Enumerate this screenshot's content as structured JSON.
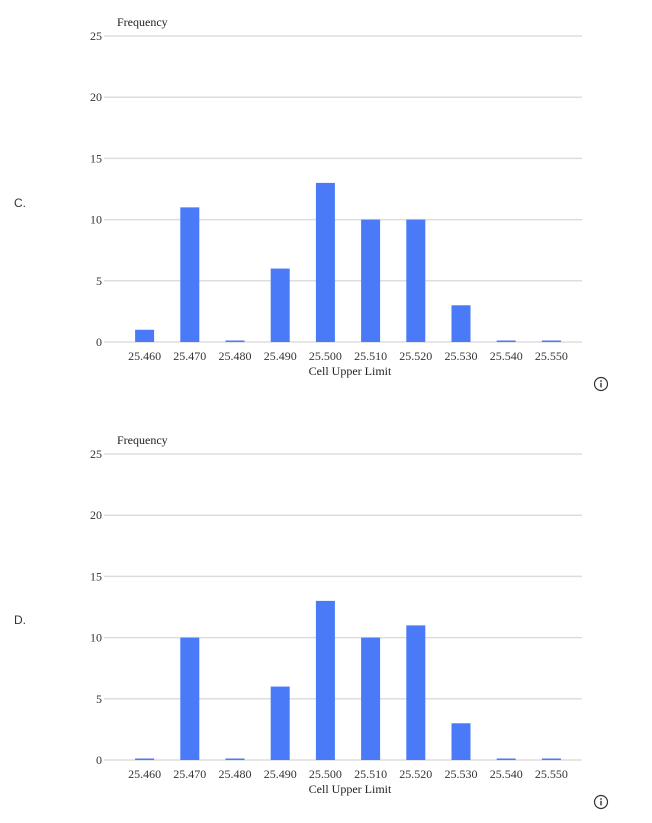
{
  "options": [
    {
      "label": "C.",
      "info_icon": "info-circle-icon",
      "chart_data": {
        "type": "bar",
        "title": "",
        "ylabel": "Frequency",
        "xlabel": "Cell Upper Limit",
        "categories": [
          "25.460",
          "25.470",
          "25.480",
          "25.490",
          "25.500",
          "25.510",
          "25.520",
          "25.530",
          "25.540",
          "25.550"
        ],
        "values": [
          1,
          11,
          0,
          6,
          13,
          10,
          10,
          3,
          0,
          0
        ],
        "yticks": [
          "0",
          "5",
          "10",
          "15",
          "20",
          "25"
        ],
        "ylim": [
          0,
          25
        ],
        "grid": true,
        "bar_color": "#4a7af8"
      }
    },
    {
      "label": "D.",
      "info_icon": "info-circle-icon",
      "chart_data": {
        "type": "bar",
        "title": "",
        "ylabel": "Frequency",
        "xlabel": "Cell Upper Limit",
        "categories": [
          "25.460",
          "25.470",
          "25.480",
          "25.490",
          "25.500",
          "25.510",
          "25.520",
          "25.530",
          "25.540",
          "25.550"
        ],
        "values": [
          0,
          10,
          0,
          6,
          13,
          10,
          11,
          3,
          0,
          0
        ],
        "yticks": [
          "0",
          "5",
          "10",
          "15",
          "20",
          "25"
        ],
        "ylim": [
          0,
          25
        ],
        "grid": true,
        "bar_color": "#4a7af8"
      }
    }
  ]
}
